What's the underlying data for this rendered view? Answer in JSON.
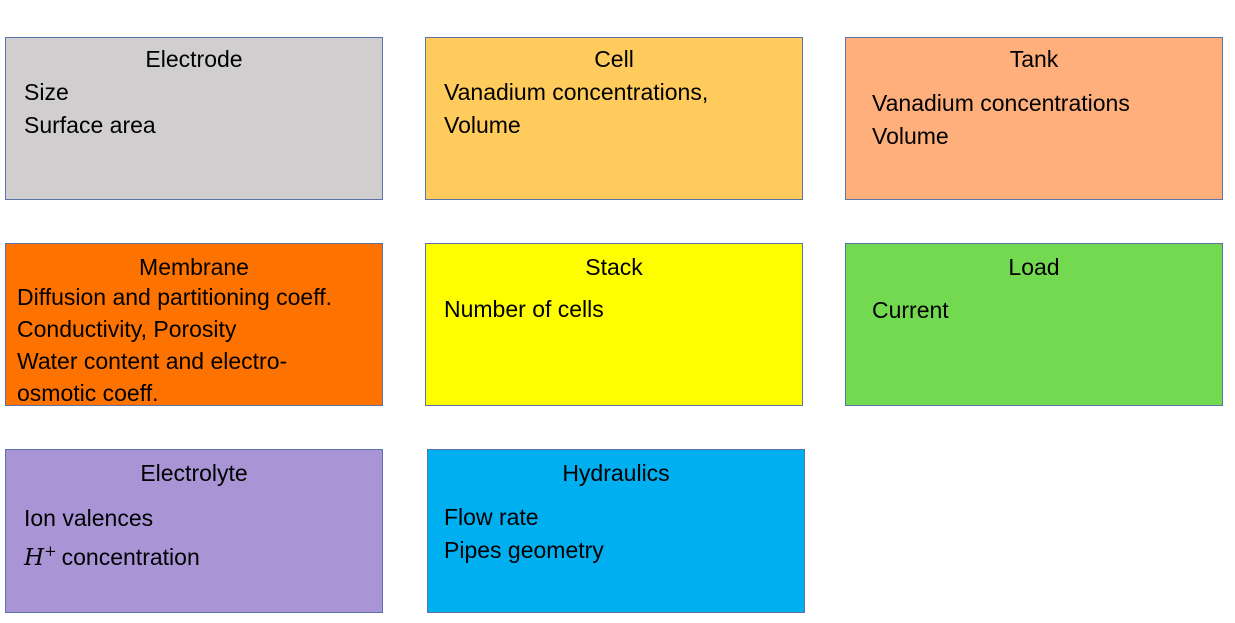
{
  "boxes": {
    "electrode": {
      "title": "Electrode",
      "color": "#d0cece",
      "lines": [
        "Size",
        "Surface area"
      ]
    },
    "cell": {
      "title": "Cell",
      "color": "#fecb5c",
      "lines": [
        "Vanadium concentrations,",
        "Volume"
      ]
    },
    "tank": {
      "title": "Tank",
      "color": "#feaf7c",
      "lines": [
        "Vanadium concentrations",
        "Volume"
      ]
    },
    "membrane": {
      "title": "Membrane",
      "color": "#fe7300",
      "lines": [
        "Diffusion and partitioning coeff.",
        "Conductivity, Porosity",
        "Water content and electro-",
        "osmotic coeff."
      ]
    },
    "stack": {
      "title": "Stack",
      "color": "#fefe00",
      "lines": [
        "Number of cells"
      ]
    },
    "load": {
      "title": "Load",
      "color": "#72d951",
      "lines": [
        "Current"
      ]
    },
    "electrolyte": {
      "title": "Electrolyte",
      "color": "#a995d6",
      "lines": [
        "Ion valences"
      ],
      "h_symbol": "H",
      "h_superscript": "+",
      "h_text": "concentration"
    },
    "hydraulics": {
      "title": "Hydraulics",
      "color": "#00aff0",
      "lines": [
        "Flow rate",
        "Pipes geometry"
      ]
    }
  }
}
